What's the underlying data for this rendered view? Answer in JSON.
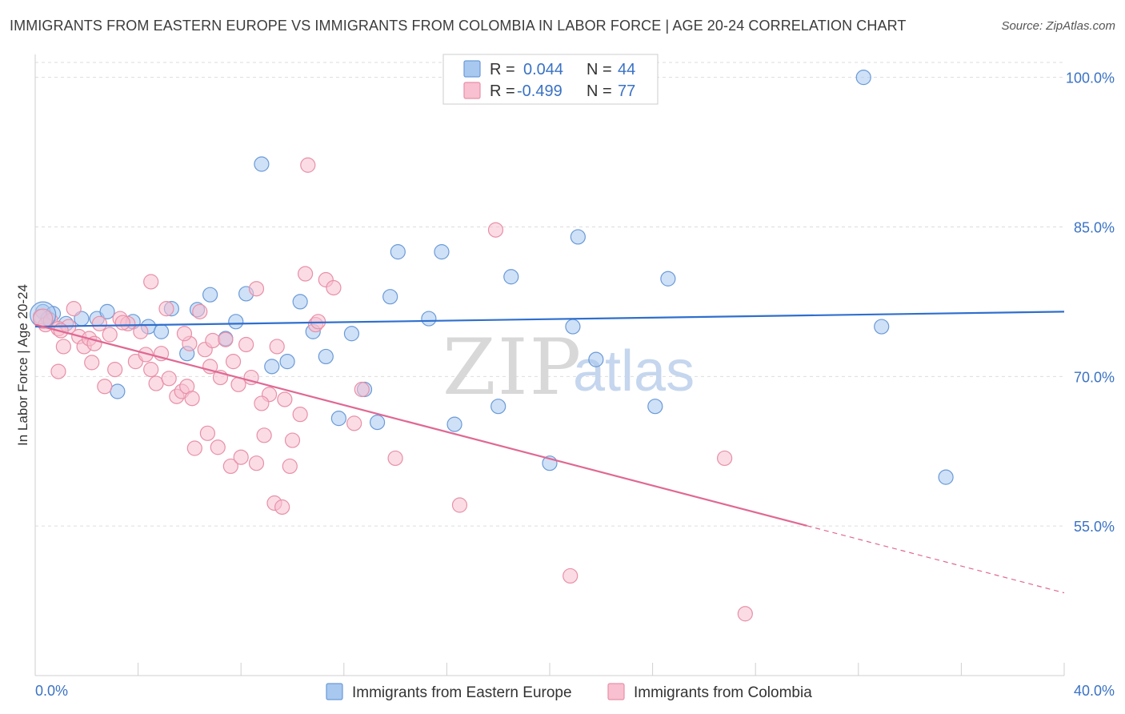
{
  "title": "IMMIGRANTS FROM EASTERN EUROPE VS IMMIGRANTS FROM COLOMBIA IN LABOR FORCE | AGE 20-24 CORRELATION CHART",
  "source": "Source: ZipAtlas.com",
  "watermark": {
    "zip": "ZIP",
    "atlas": "atlas"
  },
  "stats": [
    {
      "r_label": "R =",
      "r_value": "0.044",
      "n_label": "N =",
      "n_value": "44",
      "color": "#a8c8f0",
      "stroke": "#6a9ad8"
    },
    {
      "r_label": "R =",
      "r_value": "-0.499",
      "n_label": "N =",
      "n_value": "77",
      "color": "#f8c0d0",
      "stroke": "#e890a8"
    }
  ],
  "chart_data": {
    "type": "scatter",
    "xlabel": "",
    "ylabel": "In Labor Force | Age 20-24",
    "xlim": [
      0,
      40
    ],
    "ylim": [
      40,
      102.3
    ],
    "x_tick_labels": [
      "0.0%",
      "40.0%"
    ],
    "y_ticks": [
      55,
      70,
      85,
      100
    ],
    "y_tick_labels": [
      "55.0%",
      "70.0%",
      "85.0%",
      "100.0%"
    ],
    "grid": true,
    "legend_position": "bottom",
    "series": [
      {
        "name": "Immigrants from Eastern Europe",
        "color": "#a8c8f0",
        "stroke": "#6a9ad8",
        "line_color": "#2f6fce",
        "trend": {
          "x0": 0,
          "y0": 75.0,
          "x1": 40,
          "y1": 76.5,
          "dashed_from": null
        },
        "points": [
          [
            0.3,
            76.5
          ],
          [
            0.5,
            75.8
          ],
          [
            0.7,
            76.3
          ],
          [
            1.2,
            75.3
          ],
          [
            1.8,
            75.8
          ],
          [
            2.4,
            75.8
          ],
          [
            2.8,
            76.5
          ],
          [
            3.2,
            68.5
          ],
          [
            3.8,
            75.5
          ],
          [
            4.4,
            75.0
          ],
          [
            4.9,
            74.5
          ],
          [
            5.3,
            76.8
          ],
          [
            5.9,
            72.3
          ],
          [
            6.3,
            76.7
          ],
          [
            6.8,
            78.2
          ],
          [
            7.4,
            73.8
          ],
          [
            7.8,
            75.5
          ],
          [
            8.2,
            78.3
          ],
          [
            8.8,
            91.3
          ],
          [
            9.2,
            71.0
          ],
          [
            9.8,
            71.5
          ],
          [
            10.3,
            77.5
          ],
          [
            10.8,
            74.5
          ],
          [
            11.3,
            72.0
          ],
          [
            11.8,
            65.8
          ],
          [
            12.3,
            74.3
          ],
          [
            12.8,
            68.7
          ],
          [
            13.3,
            65.4
          ],
          [
            13.8,
            78.0
          ],
          [
            14.1,
            82.5
          ],
          [
            15.3,
            75.8
          ],
          [
            15.8,
            82.5
          ],
          [
            16.3,
            65.2
          ],
          [
            18.0,
            67.0
          ],
          [
            18.5,
            80.0
          ],
          [
            20.0,
            61.3
          ],
          [
            20.9,
            75.0
          ],
          [
            21.1,
            84.0
          ],
          [
            21.8,
            71.7
          ],
          [
            24.1,
            67.0
          ],
          [
            24.6,
            79.8
          ],
          [
            32.2,
            100.0
          ],
          [
            32.9,
            75.0
          ],
          [
            35.4,
            59.9
          ]
        ]
      },
      {
        "name": "Immigrants from Colombia",
        "color": "#f8c0d0",
        "stroke": "#e890a8",
        "line_color": "#e06893",
        "trend": {
          "x0": 0,
          "y0": 75.2,
          "x1": 40,
          "y1": 48.3,
          "dashed_from": 30.0
        },
        "points": [
          [
            0.2,
            76.0
          ],
          [
            0.4,
            75.2
          ],
          [
            0.6,
            75.6
          ],
          [
            0.9,
            74.8
          ],
          [
            0.9,
            70.5
          ],
          [
            1.1,
            73.0
          ],
          [
            1.3,
            75.0
          ],
          [
            1.5,
            76.8
          ],
          [
            1.7,
            74.0
          ],
          [
            1.9,
            73.0
          ],
          [
            2.1,
            73.8
          ],
          [
            2.3,
            73.3
          ],
          [
            2.5,
            75.3
          ],
          [
            2.7,
            69.0
          ],
          [
            2.9,
            74.2
          ],
          [
            3.1,
            70.7
          ],
          [
            3.3,
            75.8
          ],
          [
            3.6,
            75.3
          ],
          [
            3.9,
            71.5
          ],
          [
            4.1,
            74.5
          ],
          [
            4.3,
            72.2
          ],
          [
            4.5,
            70.7
          ],
          [
            4.5,
            79.5
          ],
          [
            4.7,
            69.3
          ],
          [
            4.9,
            72.3
          ],
          [
            5.1,
            76.8
          ],
          [
            5.2,
            69.8
          ],
          [
            5.5,
            68.0
          ],
          [
            5.7,
            68.5
          ],
          [
            5.9,
            69.0
          ],
          [
            6.0,
            73.3
          ],
          [
            6.1,
            67.8
          ],
          [
            6.2,
            62.8
          ],
          [
            6.4,
            76.5
          ],
          [
            6.6,
            72.7
          ],
          [
            6.7,
            64.3
          ],
          [
            6.9,
            73.6
          ],
          [
            7.1,
            62.9
          ],
          [
            7.4,
            73.7
          ],
          [
            7.6,
            61.0
          ],
          [
            7.7,
            71.5
          ],
          [
            7.9,
            69.2
          ],
          [
            8.0,
            61.9
          ],
          [
            8.2,
            73.2
          ],
          [
            8.4,
            69.9
          ],
          [
            8.6,
            61.3
          ],
          [
            8.6,
            78.8
          ],
          [
            8.9,
            64.1
          ],
          [
            9.1,
            68.2
          ],
          [
            9.3,
            57.3
          ],
          [
            9.6,
            56.9
          ],
          [
            9.7,
            67.7
          ],
          [
            9.9,
            61.0
          ],
          [
            10.0,
            63.6
          ],
          [
            10.3,
            66.2
          ],
          [
            10.5,
            80.3
          ],
          [
            10.6,
            91.2
          ],
          [
            10.9,
            75.2
          ],
          [
            11.3,
            79.7
          ],
          [
            11.6,
            78.9
          ],
          [
            12.4,
            65.3
          ],
          [
            12.7,
            68.7
          ],
          [
            14.0,
            61.8
          ],
          [
            16.5,
            57.1
          ],
          [
            17.9,
            84.7
          ],
          [
            20.8,
            50.0
          ],
          [
            26.8,
            61.8
          ],
          [
            27.6,
            46.2
          ],
          [
            1.0,
            74.6
          ],
          [
            2.2,
            71.4
          ],
          [
            3.4,
            75.4
          ],
          [
            5.8,
            74.3
          ],
          [
            6.8,
            71.0
          ],
          [
            7.2,
            69.9
          ],
          [
            8.8,
            67.3
          ],
          [
            9.4,
            73.0
          ],
          [
            11.0,
            75.5
          ]
        ]
      }
    ]
  }
}
